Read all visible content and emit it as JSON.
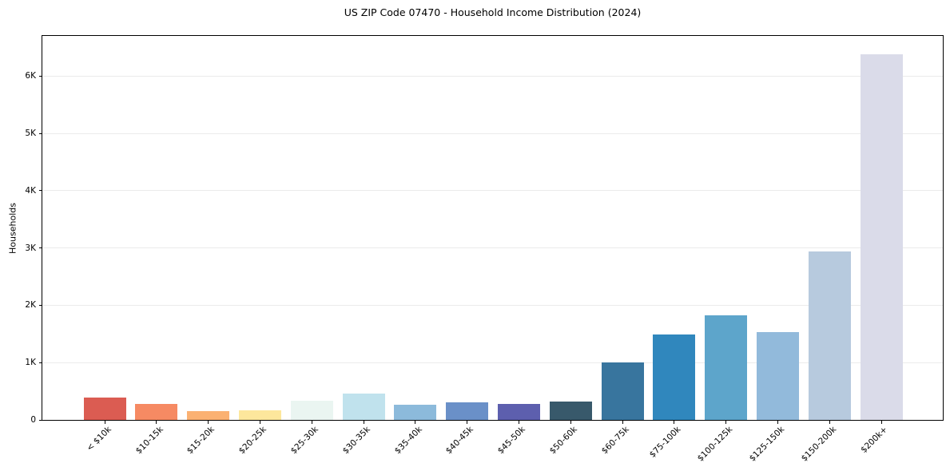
{
  "chart_data": {
    "type": "bar",
    "title": "US ZIP Code 07470 - Household Income Distribution (2024)",
    "xlabel": "",
    "ylabel": "Households",
    "categories": [
      "< $10k",
      "$10-15k",
      "$15-20k",
      "$20-25k",
      "$25-30k",
      "$30-35k",
      "$35-40k",
      "$40-45k",
      "$45-50k",
      "$50-60k",
      "$60-75k",
      "$75-100k",
      "$100-125k",
      "$125-150k",
      "$150-200k",
      "$200k+"
    ],
    "values": [
      390,
      280,
      160,
      170,
      340,
      465,
      265,
      305,
      280,
      320,
      1010,
      1490,
      1830,
      1535,
      2945,
      6380
    ],
    "bar_colors": [
      "#DB5C52",
      "#F68A63",
      "#FBB172",
      "#FDE79C",
      "#EAF5F1",
      "#C0E2ED",
      "#8CBADB",
      "#6A90C8",
      "#5D5FAE",
      "#38596B",
      "#38759E",
      "#3087BD",
      "#5DA5CB",
      "#92BADB",
      "#B7CADE",
      "#DADBE9"
    ],
    "ylim": [
      0,
      6700
    ],
    "yticks": [
      {
        "label": "0",
        "value": 0
      },
      {
        "label": "1K",
        "value": 1000
      },
      {
        "label": "2K",
        "value": 2000
      },
      {
        "label": "3K",
        "value": 3000
      },
      {
        "label": "4K",
        "value": 4000
      },
      {
        "label": "5K",
        "value": 5000
      },
      {
        "label": "6K",
        "value": 6000
      }
    ],
    "grid": true,
    "legend": false,
    "background_color": "#ffffff",
    "gridline_color": "#ebebeb"
  }
}
